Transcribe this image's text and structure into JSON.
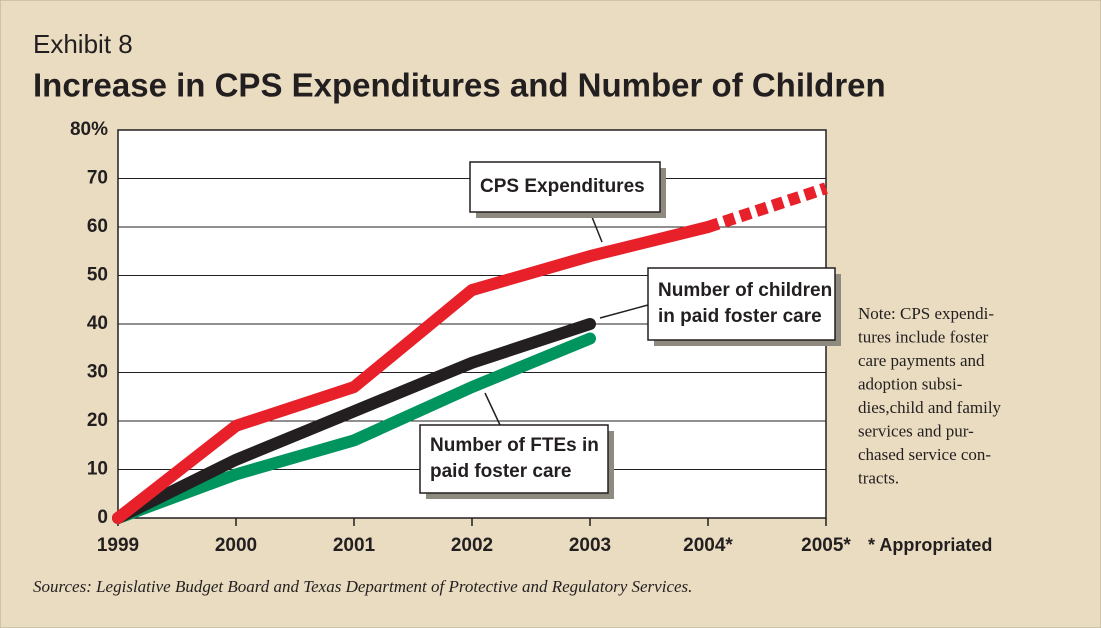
{
  "chart_data": {
    "type": "line",
    "label": "Exhibit 8",
    "title": "Increase in CPS Expenditures and Number of Children",
    "categories": [
      "1999",
      "2000",
      "2001",
      "2002",
      "2003",
      "2004*",
      "2005*"
    ],
    "series": [
      {
        "name": "Number of FTEs in paid foster care",
        "color": "#00945e",
        "values": [
          0,
          9,
          16,
          27,
          37,
          null,
          null
        ]
      },
      {
        "name": "Number of children in paid foster care",
        "color": "#231f20",
        "values": [
          0,
          12,
          22,
          32,
          40,
          null,
          null
        ]
      },
      {
        "name": "CPS Expenditures",
        "color": "#e8202a",
        "values": [
          0,
          19,
          27,
          47,
          54,
          60,
          68
        ],
        "dashed_from": 5
      }
    ],
    "callouts": [
      {
        "lines": [
          "Number of FTEs in",
          "paid foster care"
        ]
      },
      {
        "lines": [
          "Number of children",
          "in paid foster care"
        ]
      },
      {
        "lines": [
          "CPS Expenditures"
        ]
      }
    ],
    "ylim": [
      0,
      80
    ],
    "yticks": [
      0,
      10,
      20,
      30,
      40,
      50,
      60,
      70,
      {
        "value": 80,
        "label": "80%"
      }
    ],
    "grid": true,
    "note": [
      "Note: CPS expendi-",
      "tures include foster",
      "care payments and",
      "adoption subsi-",
      "dies,child and family",
      "services and pur-",
      "chased service con-",
      "tracts."
    ],
    "footnote": "* Appropriated",
    "source": "Sources: Legislative Budget Board and Texas Department of Protective and Regulatory Services."
  }
}
